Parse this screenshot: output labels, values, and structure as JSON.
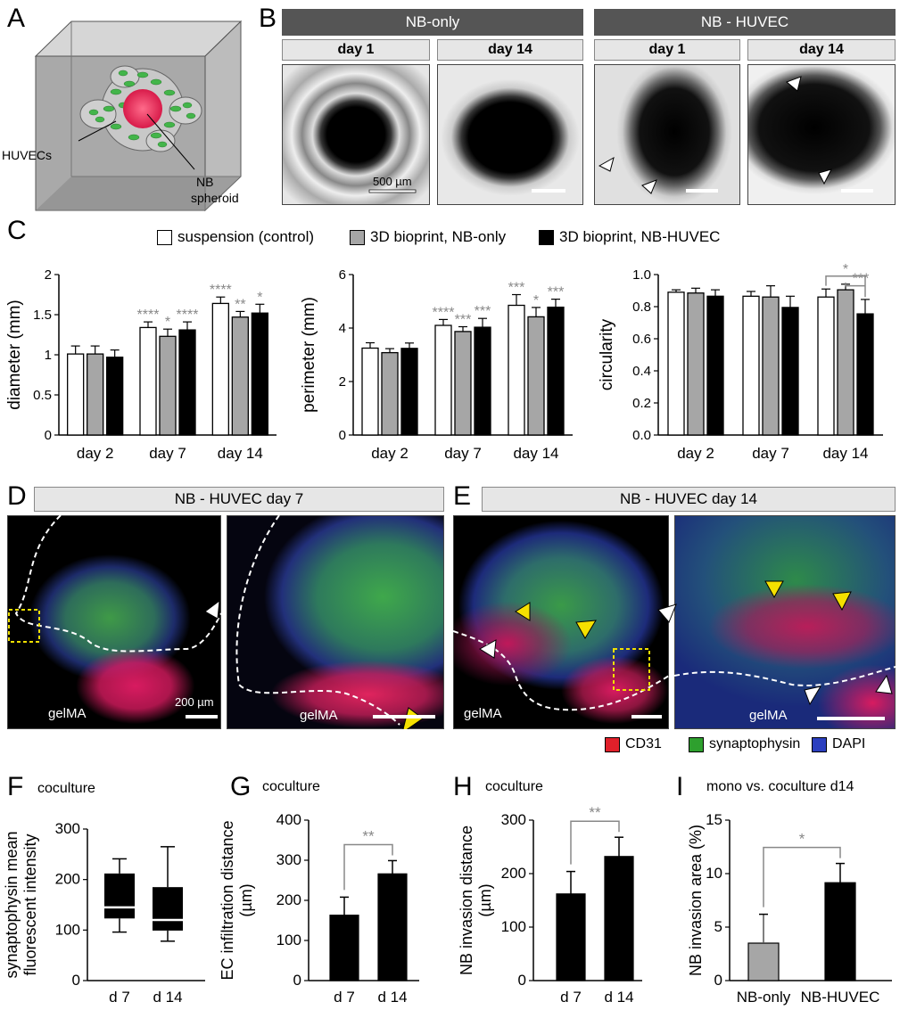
{
  "panels": {
    "A": "A",
    "B": "B",
    "C": "C",
    "D": "D",
    "E": "E",
    "F": "F",
    "G": "G",
    "H": "H",
    "I": "I"
  },
  "panelA": {
    "huvecs_label": "HUVECs",
    "nb_label": "NB",
    "spheroid_label": "spheroid"
  },
  "panelB": {
    "groups": [
      "NB-only",
      "NB - HUVEC"
    ],
    "days": [
      "day 1",
      "day 14",
      "day 1",
      "day 14"
    ],
    "scale_label": "500 µm"
  },
  "panelC": {
    "legend": [
      "suspension (control)",
      "3D bioprint, NB-only",
      "3D bioprint, NB-HUVEC"
    ],
    "colors": {
      "control": "#ffffff",
      "nb_only": "#a6a6a6",
      "nb_huvec": "#000000",
      "sig": "#888888"
    }
  },
  "panelD": {
    "title": "NB - HUVEC  day 7",
    "gel1": "gelMA",
    "gel2": "gelMA",
    "scale_label": "200 µm"
  },
  "panelE": {
    "title": "NB - HUVEC  day 14",
    "gel1": "gelMA",
    "gel2": "gelMA"
  },
  "stains": [
    "CD31",
    "synaptophysin",
    "DAPI"
  ],
  "stain_colors": [
    "#e0202a",
    "#2ea02e",
    "#2b3fbf"
  ],
  "panelF": {
    "subtitle": "coculture"
  },
  "panelG": {
    "subtitle": "coculture"
  },
  "panelH": {
    "subtitle": "coculture"
  },
  "panelI": {
    "subtitle": "mono vs. coculture   d14"
  },
  "chart_data": [
    {
      "type": "bar",
      "id": "C-diameter",
      "categories": [
        "day 2",
        "day 7",
        "day 14"
      ],
      "ylabel": "diameter (mm)",
      "ylim": [
        0,
        2
      ],
      "yticks": [
        0,
        0.5,
        1,
        1.5,
        2
      ],
      "series": [
        {
          "name": "suspension (control)",
          "values": [
            1.01,
            1.34,
            1.64
          ],
          "err": [
            0.1,
            0.07,
            0.08
          ]
        },
        {
          "name": "3D bioprint, NB-only",
          "values": [
            1.01,
            1.23,
            1.47
          ],
          "err": [
            0.1,
            0.09,
            0.07
          ]
        },
        {
          "name": "3D bioprint, NB-HUVEC",
          "values": [
            0.97,
            1.31,
            1.52
          ],
          "err": [
            0.09,
            0.1,
            0.11
          ]
        }
      ],
      "sig": [
        [
          "",
          "",
          ""
        ],
        [
          "****",
          "*",
          "****"
        ],
        [
          "****",
          "**",
          "*"
        ]
      ]
    },
    {
      "type": "bar",
      "id": "C-perimeter",
      "categories": [
        "day 2",
        "day 7",
        "day 14"
      ],
      "ylabel": "perimeter (mm)",
      "ylim": [
        0,
        6
      ],
      "yticks": [
        0,
        2,
        4,
        6
      ],
      "series": [
        {
          "name": "suspension (control)",
          "values": [
            3.25,
            4.1,
            4.85
          ],
          "err": [
            0.2,
            0.22,
            0.4
          ]
        },
        {
          "name": "3D bioprint, NB-only",
          "values": [
            3.08,
            3.87,
            4.42
          ],
          "err": [
            0.15,
            0.18,
            0.35
          ]
        },
        {
          "name": "3D bioprint, NB-HUVEC",
          "values": [
            3.24,
            4.03,
            4.78
          ],
          "err": [
            0.2,
            0.33,
            0.3
          ]
        }
      ],
      "sig": [
        [
          "",
          "",
          ""
        ],
        [
          "****",
          "***",
          "***"
        ],
        [
          "***",
          "*",
          "***"
        ]
      ]
    },
    {
      "type": "bar",
      "id": "C-circularity",
      "categories": [
        "day 2",
        "day 7",
        "day 14"
      ],
      "ylabel": "circularity",
      "ylim": [
        0,
        1
      ],
      "yticks": [
        0,
        0.2,
        0.4,
        0.6,
        0.8,
        1.0
      ],
      "series": [
        {
          "name": "suspension (control)",
          "values": [
            0.89,
            0.865,
            0.86
          ],
          "err": [
            0.015,
            0.03,
            0.05
          ]
        },
        {
          "name": "3D bioprint, NB-only",
          "values": [
            0.885,
            0.86,
            0.905
          ],
          "err": [
            0.03,
            0.07,
            0.035
          ]
        },
        {
          "name": "3D bioprint, NB-HUVEC",
          "values": [
            0.865,
            0.795,
            0.755
          ],
          "err": [
            0.04,
            0.07,
            0.09
          ]
        }
      ],
      "brackets": [
        "*",
        "***"
      ]
    },
    {
      "type": "box",
      "id": "F",
      "categories": [
        "d 7",
        "d 14"
      ],
      "ylabel": "synaptophysin mean fluorescent intensity",
      "ylim": [
        0,
        300
      ],
      "yticks": [
        0,
        100,
        200,
        300
      ],
      "boxes": [
        {
          "min": 96,
          "q1": 123,
          "median": 145,
          "q3": 212,
          "max": 241
        },
        {
          "min": 78,
          "q1": 99,
          "median": 120,
          "q3": 185,
          "max": 265
        }
      ]
    },
    {
      "type": "bar",
      "id": "G",
      "categories": [
        "d 7",
        "d 14"
      ],
      "ylabel": "EC infiltration distance (µm)",
      "ylim": [
        0,
        400
      ],
      "yticks": [
        0,
        100,
        200,
        300,
        400
      ],
      "values": [
        163,
        266
      ],
      "err": [
        45,
        33
      ],
      "sig": "**"
    },
    {
      "type": "bar",
      "id": "H",
      "categories": [
        "d 7",
        "d 14"
      ],
      "ylabel": "NB invasion distance (µm)",
      "ylim": [
        0,
        300
      ],
      "yticks": [
        0,
        100,
        200,
        300
      ],
      "values": [
        162,
        232
      ],
      "err": [
        42,
        36
      ],
      "sig": "**"
    },
    {
      "type": "bar",
      "id": "I",
      "categories": [
        "NB-only",
        "NB-HUVEC"
      ],
      "ylabel": "NB invasion area (%)",
      "ylim": [
        0,
        15
      ],
      "yticks": [
        0,
        5,
        10,
        15
      ],
      "values": [
        3.5,
        9.15
      ],
      "err": [
        2.7,
        1.8
      ],
      "sig": "*"
    }
  ]
}
